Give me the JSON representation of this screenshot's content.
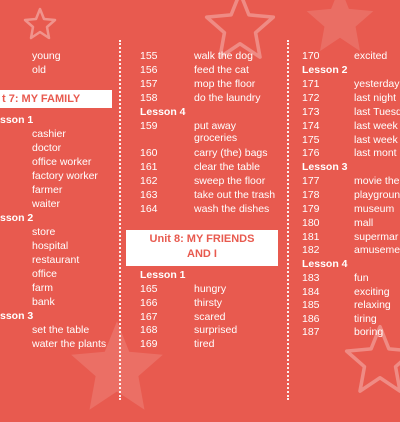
{
  "colors": {
    "background": "#e85a4f",
    "text": "#ffffff",
    "unit_bar": "#ffffff",
    "unit_bar_text": "#e85a4f"
  },
  "icons": [
    "star-icon"
  ],
  "col1": {
    "top_words": [
      "young",
      "old"
    ],
    "unit7_title": "t 7: MY FAMILY",
    "lesson1_label": "sson 1",
    "lesson1_words": [
      "cashier",
      "doctor",
      "office worker",
      "factory worker",
      "farmer",
      "waiter"
    ],
    "lesson2_label": "sson 2",
    "lesson2_words": [
      "store",
      "hospital",
      "restaurant",
      "office",
      "farm",
      "bank"
    ],
    "lesson3_label": "sson 3",
    "lesson3_words": [
      "set the table",
      "water the plants"
    ]
  },
  "col2": {
    "top_rows": [
      {
        "n": "155",
        "w": "walk the dog"
      },
      {
        "n": "156",
        "w": "feed the cat"
      },
      {
        "n": "157",
        "w": "mop the floor"
      },
      {
        "n": "158",
        "w": "do the laundry"
      }
    ],
    "lesson4_label": "Lesson 4",
    "lesson4_rows": [
      {
        "n": "159",
        "w": "put away"
      },
      {
        "n": "",
        "w": "groceries"
      },
      {
        "n": "160",
        "w": "carry (the) bags"
      },
      {
        "n": "161",
        "w": "clear the table"
      },
      {
        "n": "162",
        "w": "sweep the floor"
      },
      {
        "n": "163",
        "w": "take out the trash"
      },
      {
        "n": "164",
        "w": "wash the dishes"
      }
    ],
    "unit8_title_line1": "Unit 8: MY FRIENDS",
    "unit8_title_line2": "AND I",
    "lesson1_label": "Lesson 1",
    "lesson1_rows": [
      {
        "n": "165",
        "w": "hungry"
      },
      {
        "n": "166",
        "w": "thirsty"
      },
      {
        "n": "167",
        "w": "scared"
      },
      {
        "n": "168",
        "w": "surprised"
      },
      {
        "n": "169",
        "w": "tired"
      }
    ]
  },
  "col3": {
    "top_rows": [
      {
        "n": "170",
        "w": "excited"
      }
    ],
    "lesson2_label": "Lesson 2",
    "lesson2_rows": [
      {
        "n": "171",
        "w": "yesterday"
      },
      {
        "n": "172",
        "w": "last night"
      },
      {
        "n": "173",
        "w": "last Tuesd"
      },
      {
        "n": "174",
        "w": "last week"
      },
      {
        "n": "175",
        "w": "last week"
      },
      {
        "n": "176",
        "w": "last mont"
      }
    ],
    "lesson3_label": "Lesson 3",
    "lesson3_rows": [
      {
        "n": "177",
        "w": "movie the"
      },
      {
        "n": "178",
        "w": "playgroun"
      },
      {
        "n": "179",
        "w": "museum"
      },
      {
        "n": "180",
        "w": "mall"
      },
      {
        "n": "181",
        "w": "supermar"
      },
      {
        "n": "182",
        "w": "amuseme"
      }
    ],
    "lesson4_label": "Lesson 4",
    "lesson4_rows": [
      {
        "n": "183",
        "w": "fun"
      },
      {
        "n": "184",
        "w": "exciting"
      },
      {
        "n": "185",
        "w": "relaxing"
      },
      {
        "n": "186",
        "w": "tiring"
      },
      {
        "n": "187",
        "w": "boring"
      }
    ]
  }
}
